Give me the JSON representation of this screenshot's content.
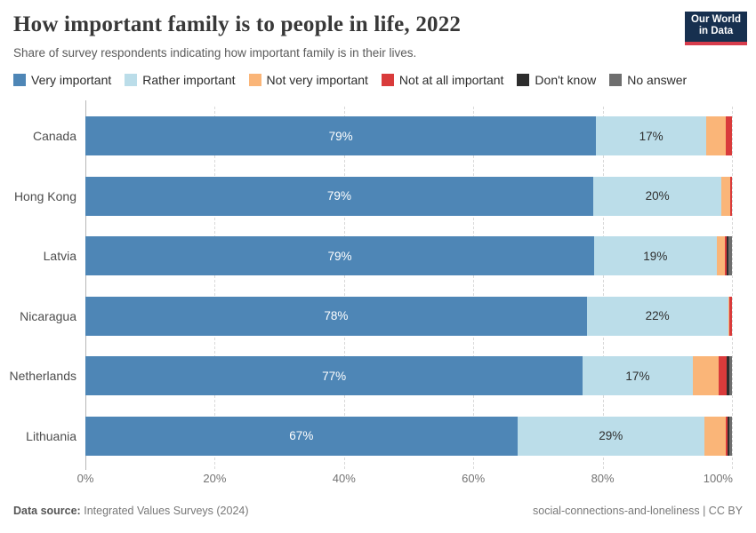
{
  "header": {
    "title": "How important family is to people in life, 2022",
    "subtitle": "Share of survey respondents indicating how important family is in their lives.",
    "logo": {
      "line1": "Our World",
      "line2": "in Data",
      "bg_color": "#17304f",
      "accent_color": "#d73c4c"
    }
  },
  "chart_data": {
    "type": "bar",
    "stacked": true,
    "orientation": "horizontal",
    "title": "How important family is to people in life, 2022",
    "categories": [
      "Canada",
      "Hong Kong",
      "Latvia",
      "Nicaragua",
      "Netherlands",
      "Lithuania"
    ],
    "series": [
      {
        "name": "Very important",
        "color": "#4e86b6",
        "label_color": "#ffffff",
        "values": [
          79,
          79,
          79,
          78,
          77,
          67
        ]
      },
      {
        "name": "Rather important",
        "color": "#bbdde9",
        "label_color": "#2f2f2f",
        "values": [
          17,
          20,
          19,
          22,
          17,
          29
        ]
      },
      {
        "name": "Not very important",
        "color": "#fab578",
        "values": [
          3,
          1.3,
          1.3,
          0.2,
          4,
          3.3
        ]
      },
      {
        "name": "Not at all important",
        "color": "#d93b3b",
        "values": [
          1,
          0.3,
          0.3,
          0.4,
          1.3,
          0.3
        ]
      },
      {
        "name": "Don't know",
        "color": "#2d2d2d",
        "values": [
          0,
          0,
          0.2,
          0,
          0.4,
          0.3
        ]
      },
      {
        "name": "No answer",
        "color": "#6e6e6e",
        "values": [
          0,
          0,
          0.6,
          0,
          0.4,
          0.4
        ]
      }
    ],
    "shown_bar_labels": {
      "Very important": [
        "79%",
        "79%",
        "79%",
        "78%",
        "77%",
        "67%"
      ],
      "Rather important": [
        "17%",
        "20%",
        "19%",
        "22%",
        "17%",
        "29%"
      ]
    },
    "xlim": [
      0,
      100
    ],
    "ticks": [
      {
        "label": "0%",
        "pos": 0
      },
      {
        "label": "20%",
        "pos": 20
      },
      {
        "label": "40%",
        "pos": 40
      },
      {
        "label": "60%",
        "pos": 60
      },
      {
        "label": "80%",
        "pos": 80
      },
      {
        "label": "100%",
        "pos": 100
      }
    ],
    "grid": "vertical-dashed",
    "legend_position": "top",
    "bar_label_min_percent": 8
  },
  "footer": {
    "source_label": "Data source:",
    "source_value": "Integrated Values Surveys (2024)",
    "note_right": "social-connections-and-loneliness | CC BY"
  }
}
